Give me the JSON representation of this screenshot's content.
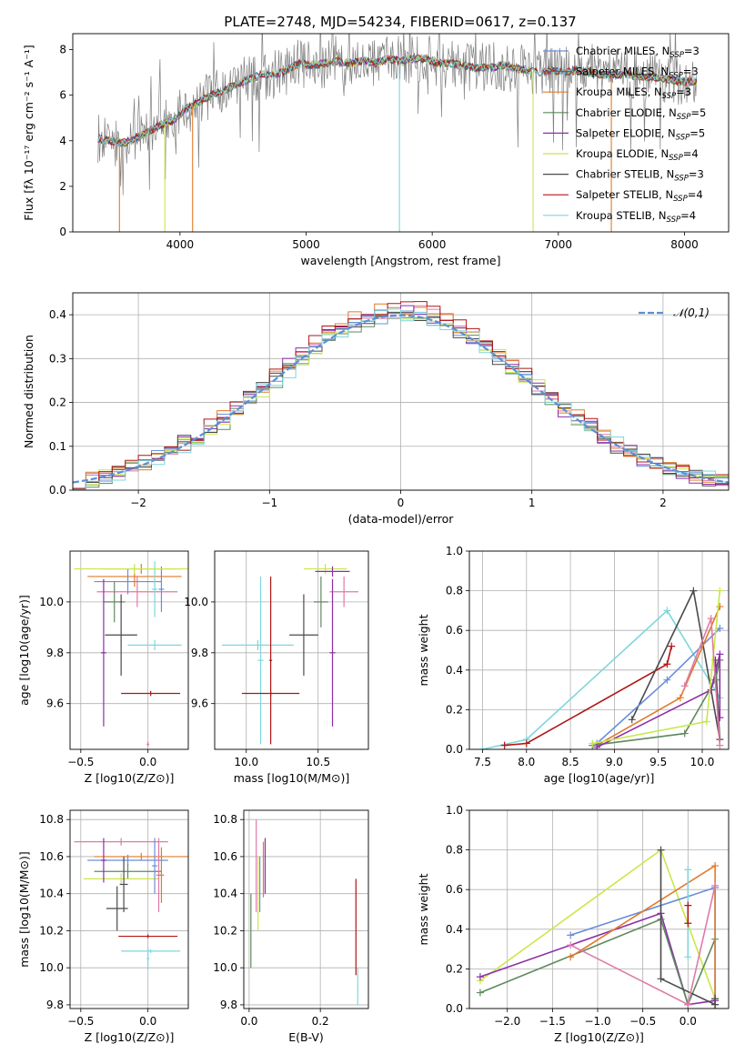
{
  "figure_title": "PLATE=2748, MJD=54234, FIBERID=0617, z=0.137",
  "palette": {
    "Chabrier MILES": "#6a8fd8",
    "Salpeter MILES": "#2f6fb0",
    "Kroupa MILES": "#e07b2a",
    "Chabrier ELODIE": "#5f8a5f",
    "Salpeter ELODIE": "#8e2ea8",
    "Kroupa ELODIE": "#c8e84a",
    "Chabrier STELIB": "#4a4a4a",
    "Salpeter STELIB": "#b01515",
    "Kroupa STELIB": "#7fd6dc",
    "Pink": "#e07aa8",
    "Spectrum": "#808080"
  },
  "chart_data": [
    {
      "id": "spectrum",
      "type": "line",
      "title": "PLATE=2748, MJD=54234, FIBERID=0617, z=0.137",
      "xlabel": "wavelength [Angstrom, rest frame]",
      "ylabel": "Flux [fλ 10⁻¹⁷ erg cm⁻² s⁻¹ A⁻¹]",
      "xlim": [
        3150,
        8350
      ],
      "ylim": [
        0,
        8.7
      ],
      "xticks": [
        4000,
        5000,
        6000,
        7000,
        8000
      ],
      "yticks": [
        0,
        2,
        4,
        6,
        8
      ],
      "grid": false,
      "legend_position": "right",
      "legend": [
        {
          "label": "Chabrier MILES, N",
          "sub": "SSP",
          "suffix": "=3",
          "color": "#6a8fd8"
        },
        {
          "label": "Salpeter MILES, N",
          "sub": "SSP",
          "suffix": "=3",
          "color": "#2f6fb0"
        },
        {
          "label": "Kroupa MILES, N",
          "sub": "SSP",
          "suffix": "=3",
          "color": "#e07b2a"
        },
        {
          "label": "Chabrier ELODIE, N",
          "sub": "SSP",
          "suffix": "=5",
          "color": "#5f8a5f"
        },
        {
          "label": "Salpeter ELODIE, N",
          "sub": "SSP",
          "suffix": "=5",
          "color": "#8e2ea8"
        },
        {
          "label": "Kroupa ELODIE, N",
          "sub": "SSP",
          "suffix": "=4",
          "color": "#c8e84a"
        },
        {
          "label": "Chabrier STELIB, N",
          "sub": "SSP",
          "suffix": "=3",
          "color": "#4a4a4a"
        },
        {
          "label": "Salpeter STELIB, N",
          "sub": "SSP",
          "suffix": "=4",
          "color": "#b01515"
        },
        {
          "label": "Kroupa STELIB, N",
          "sub": "SSP",
          "suffix": "=4",
          "color": "#7fd6dc"
        }
      ],
      "continuum_points": [
        [
          3350,
          4.1
        ],
        [
          3450,
          4.0
        ],
        [
          3550,
          3.9
        ],
        [
          3650,
          4.1
        ],
        [
          3750,
          4.4
        ],
        [
          3850,
          4.7
        ],
        [
          3950,
          4.9
        ],
        [
          4050,
          5.4
        ],
        [
          4150,
          5.7
        ],
        [
          4250,
          6.0
        ],
        [
          4350,
          6.2
        ],
        [
          4450,
          6.5
        ],
        [
          4550,
          6.7
        ],
        [
          4650,
          6.9
        ],
        [
          4750,
          6.9
        ],
        [
          4850,
          7.1
        ],
        [
          4950,
          7.4
        ],
        [
          5050,
          7.3
        ],
        [
          5150,
          7.4
        ],
        [
          5250,
          7.5
        ],
        [
          5350,
          7.4
        ],
        [
          5450,
          7.5
        ],
        [
          5550,
          7.4
        ],
        [
          5650,
          7.6
        ],
        [
          5750,
          7.5
        ],
        [
          5850,
          7.6
        ],
        [
          5950,
          7.6
        ],
        [
          6050,
          7.4
        ],
        [
          6150,
          7.4
        ],
        [
          6250,
          7.3
        ],
        [
          6350,
          7.2
        ],
        [
          6450,
          7.2
        ],
        [
          6550,
          7.3
        ],
        [
          6650,
          7.2
        ],
        [
          6750,
          7.1
        ],
        [
          6850,
          7.0
        ],
        [
          6950,
          7.1
        ],
        [
          7050,
          7.0
        ],
        [
          7150,
          7.1
        ],
        [
          7250,
          7.0
        ],
        [
          7350,
          6.9
        ],
        [
          7450,
          6.9
        ],
        [
          7550,
          6.9
        ],
        [
          7650,
          6.8
        ],
        [
          7750,
          6.8
        ],
        [
          7850,
          6.7
        ],
        [
          7950,
          6.6
        ],
        [
          8050,
          6.6
        ]
      ]
    },
    {
      "id": "residuals",
      "type": "histogram",
      "xlabel": "(data-model)/error",
      "ylabel": "Normed distribution",
      "xlim": [
        -2.5,
        2.5
      ],
      "ylim": [
        0,
        0.45
      ],
      "xticks": [
        -2,
        -1,
        0,
        1,
        2
      ],
      "yticks": [
        0.0,
        0.1,
        0.2,
        0.3,
        0.4
      ],
      "grid": true,
      "legend_position": "top-right",
      "reference_curve": {
        "label": "𝒩(0,1)",
        "color": "#5b8fd6",
        "mu": 0,
        "sigma": 1
      },
      "bin_width": 0.1,
      "bin_start": -2.5,
      "series": [
        {
          "color": "#e07aa8",
          "scale": 1.0,
          "shift": 0.02
        },
        {
          "color": "#6a8fd8",
          "scale": 0.98,
          "shift": -0.01
        },
        {
          "color": "#e07b2a",
          "scale": 1.02,
          "shift": 0.0
        },
        {
          "color": "#5f8a5f",
          "scale": 0.97,
          "shift": 0.015
        },
        {
          "color": "#8e2ea8",
          "scale": 1.01,
          "shift": -0.015
        },
        {
          "color": "#c8e84a",
          "scale": 0.99,
          "shift": 0.01
        },
        {
          "color": "#4a4a4a",
          "scale": 1.0,
          "shift": -0.02
        },
        {
          "color": "#b01515",
          "scale": 1.03,
          "shift": 0.005
        },
        {
          "color": "#7fd6dc",
          "scale": 0.98,
          "shift": 0.02
        }
      ]
    },
    {
      "id": "age_vs_Z",
      "type": "errorbar",
      "xlabel": "Z [log10(Z/Z⊙)]",
      "ylabel": "age  [log10(age/yr)]",
      "xlim": [
        -0.58,
        0.3
      ],
      "ylim": [
        9.42,
        10.2
      ],
      "xticks": [
        -0.5,
        0.0
      ],
      "yticks": [
        9.6,
        9.8,
        10.0
      ],
      "grid": true,
      "points": [
        {
          "x": -0.05,
          "xerr": 0.3,
          "y": 10.13,
          "yerr": 0.02,
          "color": "#e07b2a"
        },
        {
          "x": -0.1,
          "xerr": 0.35,
          "y": 10.1,
          "yerr": 0.04,
          "color": "#e07b2a"
        },
        {
          "x": -0.08,
          "xerr": 0.3,
          "y": 10.04,
          "yerr": 0.06,
          "color": "#e07aa8"
        },
        {
          "x": -0.15,
          "xerr": 0.25,
          "y": 10.08,
          "yerr": 0.05,
          "color": "#6a8fd8"
        },
        {
          "x": -0.25,
          "xerr": 0.08,
          "y": 10.0,
          "yerr": 0.08,
          "color": "#5f8a5f"
        },
        {
          "x": -0.33,
          "xerr": 0.02,
          "y": 9.8,
          "yerr": 0.29,
          "color": "#8e2ea8"
        },
        {
          "x": -0.2,
          "xerr": 0.12,
          "y": 9.87,
          "yerr": 0.16,
          "color": "#4a4a4a"
        },
        {
          "x": 0.05,
          "xerr": 0.02,
          "y": 10.05,
          "yerr": 0.11,
          "color": "#7fd6dc"
        },
        {
          "x": 0.1,
          "xerr": 0.02,
          "y": 10.05,
          "yerr": 0.09,
          "color": "#6a8fd8"
        },
        {
          "x": -0.1,
          "xerr": 0.45,
          "y": 10.13,
          "yerr": 0.02,
          "color": "#c8e84a"
        },
        {
          "x": 0.05,
          "xerr": 0.2,
          "y": 9.83,
          "yerr": 0.02,
          "color": "#7fd6dc"
        },
        {
          "x": 0.02,
          "xerr": 0.22,
          "y": 9.64,
          "yerr": 0.01,
          "color": "#b01515"
        },
        {
          "x": 0.0,
          "xerr": 0.01,
          "y": 9.44,
          "yerr": 0.01,
          "color": "#e07aa8"
        }
      ]
    },
    {
      "id": "age_vs_mass",
      "type": "errorbar",
      "xlabel": "mass [log10(M/M⊙)]",
      "ylabel": "",
      "xlim": [
        9.78,
        10.85
      ],
      "ylim": [
        9.42,
        10.2
      ],
      "xticks": [
        10.0,
        10.5
      ],
      "yticks": [
        9.6,
        9.8,
        10.0
      ],
      "grid": true,
      "points": [
        {
          "x": 10.55,
          "xerr": 0.15,
          "y": 10.13,
          "yerr": 0.02,
          "color": "#c8e84a"
        },
        {
          "x": 10.6,
          "xerr": 0.12,
          "y": 10.12,
          "yerr": 0.02,
          "color": "#8e2ea8"
        },
        {
          "x": 10.68,
          "xerr": 0.1,
          "y": 10.04,
          "yerr": 0.06,
          "color": "#e07aa8"
        },
        {
          "x": 10.52,
          "xerr": 0.05,
          "y": 10.0,
          "yerr": 0.1,
          "color": "#5f8a5f"
        },
        {
          "x": 10.4,
          "xerr": 0.1,
          "y": 9.87,
          "yerr": 0.16,
          "color": "#4a4a4a"
        },
        {
          "x": 10.6,
          "xerr": 0.02,
          "y": 9.8,
          "yerr": 0.29,
          "color": "#8e2ea8"
        },
        {
          "x": 10.1,
          "xerr": 0.02,
          "y": 9.77,
          "yerr": 0.33,
          "color": "#7fd6dc"
        },
        {
          "x": 10.08,
          "xerr": 0.25,
          "y": 9.83,
          "yerr": 0.02,
          "color": "#7fd6dc"
        },
        {
          "x": 10.17,
          "xerr": 0.2,
          "y": 9.64,
          "yerr": 0.01,
          "color": "#b01515"
        },
        {
          "x": 10.17,
          "xerr": 0.01,
          "y": 9.77,
          "yerr": 0.33,
          "color": "#b01515"
        }
      ]
    },
    {
      "id": "massweight_vs_age",
      "type": "line",
      "xlabel": "age  [log10(age/yr)]",
      "ylabel": "mass weight",
      "xlim": [
        7.35,
        10.3
      ],
      "ylim": [
        0,
        1.0
      ],
      "xticks": [
        7.5,
        8.0,
        8.5,
        9.0,
        9.5,
        10.0
      ],
      "yticks": [
        0.0,
        0.2,
        0.4,
        0.6,
        0.8,
        1.0
      ],
      "grid": true,
      "series": [
        {
          "color": "#7fd6dc",
          "x": [
            7.5,
            8.0,
            9.6,
            10.2
          ],
          "y": [
            0.0,
            0.05,
            0.7,
            0.26
          ]
        },
        {
          "color": "#b01515",
          "x": [
            7.75,
            8.0,
            9.6,
            9.65
          ],
          "y": [
            0.02,
            0.03,
            0.43,
            0.52
          ]
        },
        {
          "color": "#4a4a4a",
          "x": [
            9.2,
            9.9,
            10.2,
            10.15
          ],
          "y": [
            0.15,
            0.8,
            0.05,
            0.45
          ]
        },
        {
          "color": "#6a8fd8",
          "x": [
            8.8,
            9.6,
            10.2
          ],
          "y": [
            0.03,
            0.35,
            0.61
          ]
        },
        {
          "color": "#e07b2a",
          "x": [
            8.8,
            9.75,
            10.2
          ],
          "y": [
            0.02,
            0.26,
            0.72
          ]
        },
        {
          "color": "#5f8a5f",
          "x": [
            8.75,
            9.8,
            10.15,
            10.2
          ],
          "y": [
            0.02,
            0.08,
            0.35,
            0.45
          ]
        },
        {
          "color": "#8e2ea8",
          "x": [
            8.8,
            10.1,
            10.2,
            10.2
          ],
          "y": [
            0.01,
            0.3,
            0.48,
            0.16
          ]
        },
        {
          "color": "#c8e84a",
          "x": [
            8.75,
            10.05,
            10.2
          ],
          "y": [
            0.03,
            0.14,
            0.8
          ]
        },
        {
          "color": "#e07aa8",
          "x": [
            9.8,
            10.1,
            10.2
          ],
          "y": [
            0.32,
            0.66,
            0.02
          ]
        }
      ]
    },
    {
      "id": "mass_vs_Z",
      "type": "errorbar",
      "xlabel": "Z [log10(Z/Z⊙)]",
      "ylabel": "mass [log10(M/M⊙)]",
      "xlim": [
        -0.58,
        0.3
      ],
      "ylim": [
        9.78,
        10.85
      ],
      "xticks": [
        -0.5,
        0.0
      ],
      "yticks": [
        9.8,
        10.0,
        10.2,
        10.4,
        10.6,
        10.8
      ],
      "grid": true,
      "points": [
        {
          "x": -0.2,
          "xerr": 0.35,
          "y": 10.68,
          "yerr": 0.02,
          "color": "#e07aa8"
        },
        {
          "x": -0.05,
          "xerr": 0.35,
          "y": 10.6,
          "yerr": 0.02,
          "color": "#e07b2a"
        },
        {
          "x": -0.15,
          "xerr": 0.3,
          "y": 10.58,
          "yerr": 0.03,
          "color": "#6a8fd8"
        },
        {
          "x": -0.15,
          "xerr": 0.25,
          "y": 10.52,
          "yerr": 0.04,
          "color": "#5f8a5f"
        },
        {
          "x": -0.2,
          "xerr": 0.28,
          "y": 10.48,
          "yerr": 0.03,
          "color": "#c8e84a"
        },
        {
          "x": -0.33,
          "xerr": 0.02,
          "y": 10.58,
          "yerr": 0.12,
          "color": "#8e2ea8"
        },
        {
          "x": -0.23,
          "xerr": 0.08,
          "y": 10.32,
          "yerr": 0.12,
          "color": "#4a4a4a"
        },
        {
          "x": -0.18,
          "xerr": 0.03,
          "y": 10.45,
          "yerr": 0.15,
          "color": "#4a4a4a"
        },
        {
          "x": 0.08,
          "xerr": 0.02,
          "y": 10.5,
          "yerr": 0.2,
          "color": "#e07aa8"
        },
        {
          "x": 0.1,
          "xerr": 0.02,
          "y": 10.5,
          "yerr": 0.15,
          "color": "#e07b2a"
        },
        {
          "x": 0.05,
          "xerr": 0.02,
          "y": 10.55,
          "yerr": 0.15,
          "color": "#6a8fd8"
        },
        {
          "x": 0.0,
          "xerr": 0.22,
          "y": 10.17,
          "yerr": 0.01,
          "color": "#b01515"
        },
        {
          "x": 0.02,
          "xerr": 0.22,
          "y": 10.09,
          "yerr": 0.01,
          "color": "#7fd6dc"
        },
        {
          "x": 0.0,
          "xerr": 0.01,
          "y": 10.05,
          "yerr": 0.06,
          "color": "#7fd6dc"
        }
      ]
    },
    {
      "id": "mass_vs_EBV",
      "type": "errorbar",
      "xlabel": "E(B-V)",
      "ylabel": "",
      "xlim": [
        -0.015,
        0.335
      ],
      "ylim": [
        9.78,
        10.85
      ],
      "xticks": [
        0.0,
        0.2
      ],
      "yticks": [
        9.8,
        10.0,
        10.2,
        10.4,
        10.6,
        10.8
      ],
      "grid": true,
      "points": [
        {
          "x": 0.005,
          "xerr": 0.001,
          "y": 10.2,
          "yerr": 0.2,
          "color": "#5f8a5f"
        },
        {
          "x": 0.02,
          "xerr": 0.001,
          "y": 10.55,
          "yerr": 0.25,
          "color": "#e07aa8"
        },
        {
          "x": 0.025,
          "xerr": 0.001,
          "y": 10.4,
          "yerr": 0.2,
          "color": "#c8e84a"
        },
        {
          "x": 0.03,
          "xerr": 0.001,
          "y": 10.45,
          "yerr": 0.15,
          "color": "#6a8fd8"
        },
        {
          "x": 0.04,
          "xerr": 0.001,
          "y": 10.53,
          "yerr": 0.15,
          "color": "#e07b2a"
        },
        {
          "x": 0.045,
          "xerr": 0.001,
          "y": 10.55,
          "yerr": 0.15,
          "color": "#8e2ea8"
        },
        {
          "x": 0.3,
          "xerr": 0.001,
          "y": 10.22,
          "yerr": 0.26,
          "color": "#b01515"
        },
        {
          "x": 0.305,
          "xerr": 0.001,
          "y": 9.9,
          "yerr": 0.1,
          "color": "#7fd6dc"
        }
      ]
    },
    {
      "id": "massweight_vs_Z",
      "type": "line",
      "xlabel": "Z [log10(Z/Z⊙)]",
      "ylabel": "mass weight",
      "xlim": [
        -2.42,
        0.45
      ],
      "ylim": [
        0,
        1.0
      ],
      "xticks": [
        -2.0,
        -1.5,
        -1.0,
        -0.5,
        0.0
      ],
      "yticks": [
        0.0,
        0.2,
        0.4,
        0.6,
        0.8,
        1.0
      ],
      "grid": true,
      "series": [
        {
          "color": "#c8e84a",
          "x": [
            -2.3,
            -0.3,
            0.3
          ],
          "y": [
            0.14,
            0.8,
            0.05
          ]
        },
        {
          "color": "#8e2ea8",
          "x": [
            -2.3,
            -0.3,
            0.0,
            0.3
          ],
          "y": [
            0.16,
            0.48,
            0.02,
            0.04
          ]
        },
        {
          "color": "#5f8a5f",
          "x": [
            -2.3,
            -0.3,
            0.0,
            0.3
          ],
          "y": [
            0.08,
            0.45,
            0.02,
            0.35
          ]
        },
        {
          "color": "#6a8fd8",
          "x": [
            -1.3,
            0.3,
            0.3
          ],
          "y": [
            0.37,
            0.61,
            0.02
          ]
        },
        {
          "color": "#e07b2a",
          "x": [
            -1.3,
            0.3,
            0.3
          ],
          "y": [
            0.26,
            0.72,
            0.0
          ]
        },
        {
          "color": "#4a4a4a",
          "x": [
            -0.3,
            -0.3,
            0.3,
            0.3
          ],
          "y": [
            0.8,
            0.15,
            0.02,
            0.05
          ]
        },
        {
          "color": "#e07aa8",
          "x": [
            -1.3,
            0.0,
            0.3
          ],
          "y": [
            0.32,
            0.02,
            0.62
          ]
        },
        {
          "color": "#7fd6dc",
          "x": [
            0.0,
            0.0
          ],
          "y": [
            0.7,
            0.26
          ]
        },
        {
          "color": "#b01515",
          "x": [
            0.0,
            0.0
          ],
          "y": [
            0.52,
            0.43
          ]
        }
      ]
    }
  ]
}
